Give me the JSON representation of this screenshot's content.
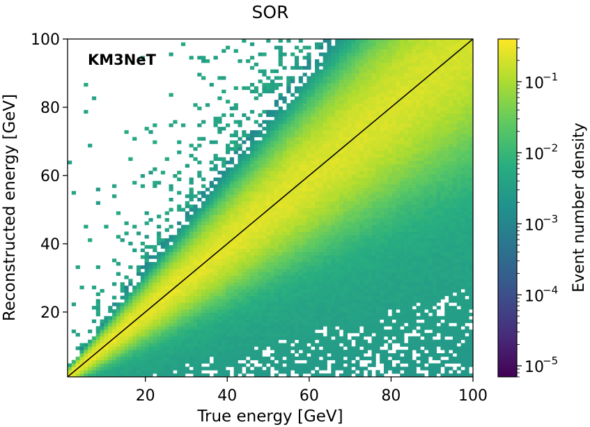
{
  "chart_data": {
    "type": "heatmap",
    "title": "SOR",
    "xlabel": "True energy [GeV]",
    "ylabel": "Reconstructed energy [GeV]",
    "xlim": [
      1,
      100
    ],
    "ylim": [
      1,
      100
    ],
    "x_ticks": [
      20,
      40,
      60,
      80,
      100
    ],
    "x_tick_labels": [
      "20",
      "40",
      "60",
      "80",
      "100"
    ],
    "y_ticks": [
      20,
      40,
      60,
      80,
      100
    ],
    "y_tick_labels": [
      "20",
      "40",
      "60",
      "80",
      "100"
    ],
    "annotation": "KM3NeT",
    "diagonal_line": {
      "from": [
        1,
        1
      ],
      "to": [
        100,
        100
      ],
      "color": "#000000"
    },
    "bins": 100,
    "colormap": "viridis",
    "colorbar": {
      "label": "Event number density",
      "scale": "log",
      "range": [
        7e-06,
        0.4
      ],
      "ticks": [
        1e-05,
        0.0001,
        0.001,
        0.01,
        0.1
      ],
      "tick_labels": [
        {
          "base": "10",
          "exp": "−5"
        },
        {
          "base": "10",
          "exp": "−4"
        },
        {
          "base": "10",
          "exp": "−3"
        },
        {
          "base": "10",
          "exp": "−2"
        },
        {
          "base": "10",
          "exp": "−1"
        }
      ]
    }
  }
}
